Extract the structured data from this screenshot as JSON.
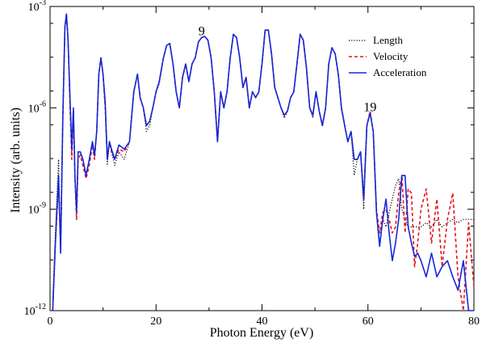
{
  "chart_data": {
    "type": "line",
    "xlabel": "Photon Energy (eV)",
    "ylabel": "Intensity (arb. units)",
    "xlim": [
      0,
      80
    ],
    "ylim": [
      1e-12,
      0.001
    ],
    "yscale": "log",
    "x_ticks": [
      0,
      20,
      40,
      60,
      80
    ],
    "x_tick_labels": [
      "0",
      "20",
      "40",
      "60",
      "80"
    ],
    "y_ticks": [
      1e-12,
      1e-09,
      1e-06,
      0.001
    ],
    "y_tick_labels": [
      {
        "base": "10",
        "exp": "-12"
      },
      {
        "base": "10",
        "exp": "-9"
      },
      {
        "base": "10",
        "exp": "-6"
      },
      {
        "base": "10",
        "exp": "-3"
      }
    ],
    "legend_position": "top-right",
    "annotations": [
      {
        "text": "9",
        "x": 28.6,
        "y": 0.00014
      },
      {
        "text": "19",
        "x": 60.4,
        "y": 8e-07
      }
    ],
    "series": [
      {
        "name": "Length",
        "color": "#000000",
        "style": "dotted",
        "x": [
          0.5,
          1.0,
          1.6,
          2.0,
          2.4,
          2.8,
          3.1,
          3.4,
          3.8,
          4.1,
          4.4,
          4.7,
          5.0,
          5.3,
          5.7,
          6.2,
          6.8,
          7.4,
          8.0,
          8.4,
          8.8,
          9.2,
          9.6,
          10.0,
          10.4,
          10.8,
          11.2,
          11.6,
          12.2,
          13.0,
          14.0,
          15.0,
          15.8,
          16.5,
          17.0,
          17.6,
          18.2,
          18.8,
          19.4,
          20.0,
          20.6,
          21.4,
          22.0,
          22.6,
          23.2,
          23.8,
          24.4,
          25.0,
          25.6,
          26.2,
          26.8,
          27.4,
          28.0,
          28.6,
          29.2,
          29.8,
          30.4,
          31.0,
          31.6,
          32.2,
          32.8,
          33.4,
          34.0,
          34.6,
          35.2,
          35.8,
          36.4,
          37.0,
          37.6,
          38.2,
          38.8,
          39.4,
          40.0,
          40.6,
          41.2,
          41.8,
          42.4,
          43.0,
          43.6,
          44.2,
          44.8,
          45.4,
          46.0,
          46.6,
          47.2,
          47.8,
          48.4,
          49.0,
          49.6,
          50.2,
          50.8,
          51.4,
          52.0,
          52.6,
          53.2,
          53.8,
          54.4,
          55.0,
          55.6,
          56.2,
          56.8,
          57.4,
          58.0,
          58.6,
          59.2,
          59.8,
          60.4,
          61.0,
          61.6,
          62.2,
          62.8,
          63.4,
          64.0,
          64.6,
          65.2,
          65.8,
          66.4,
          67.0,
          67.6,
          68.2,
          68.8,
          69.4,
          70.0,
          71.0,
          72.0,
          73.0,
          74.0,
          75.0,
          76.0,
          77.0,
          78.0,
          79.0,
          80.0
        ],
        "y": [
          2e-12,
          2e-10,
          3e-08,
          5e-11,
          5e-07,
          0.00025,
          0.0006,
          0.0001,
          1e-06,
          5e-08,
          1e-06,
          1e-08,
          8e-10,
          5e-08,
          5e-08,
          3e-08,
          1e-08,
          3e-08,
          1e-07,
          3e-08,
          2e-07,
          1e-05,
          3e-05,
          1e-05,
          1e-06,
          2e-08,
          1e-07,
          5e-08,
          2e-08,
          5e-08,
          3e-08,
          1e-07,
          3e-06,
          1e-05,
          2e-06,
          1e-06,
          2e-07,
          3e-07,
          1e-06,
          3e-06,
          5e-06,
          3e-05,
          7e-05,
          8e-05,
          2e-05,
          3e-06,
          1e-06,
          8e-06,
          2e-05,
          6e-06,
          2e-05,
          3e-05,
          9e-05,
          0.00012,
          0.00013,
          0.0001,
          3e-05,
          3e-06,
          1e-07,
          3e-06,
          1e-06,
          3e-06,
          3e-05,
          0.00015,
          0.00012,
          3e-05,
          4e-06,
          8e-06,
          1e-06,
          3e-06,
          2e-06,
          3e-06,
          2e-05,
          0.0002,
          0.0002,
          4e-05,
          4e-06,
          2e-06,
          1e-06,
          5e-07,
          8e-07,
          2e-06,
          3e-06,
          2e-05,
          0.00015,
          0.0001,
          1.5e-05,
          1e-06,
          5e-07,
          3e-06,
          8e-07,
          3e-07,
          1e-06,
          2e-05,
          6e-05,
          4e-05,
          1e-05,
          1e-06,
          3e-07,
          1e-07,
          2e-07,
          1e-08,
          3e-08,
          5e-08,
          1e-09,
          3e-07,
          7e-07,
          2e-07,
          8e-10,
          1e-10,
          5e-10,
          3e-10,
          8e-10,
          2e-09,
          5e-09,
          8e-09,
          1e-09,
          5e-10,
          3e-10,
          3e-10,
          3e-10,
          3e-10,
          3e-10,
          4e-10,
          3e-10,
          5e-10,
          3e-10,
          4e-10,
          5e-10,
          4e-10,
          5e-10,
          5e-10,
          5e-10
        ]
      },
      {
        "name": "Velocity",
        "color": "#e8121b",
        "style": "dashed",
        "x": [
          0.5,
          1.0,
          1.6,
          2.0,
          2.4,
          2.8,
          3.1,
          3.4,
          3.8,
          4.1,
          4.4,
          4.7,
          5.0,
          5.3,
          5.7,
          6.2,
          6.8,
          7.4,
          8.0,
          8.4,
          8.8,
          9.2,
          9.6,
          10.0,
          10.4,
          10.8,
          11.2,
          11.6,
          12.2,
          13.0,
          14.0,
          15.0,
          15.8,
          16.5,
          17.0,
          17.6,
          18.2,
          18.8,
          19.4,
          20.0,
          20.6,
          21.4,
          22.0,
          22.6,
          23.2,
          23.8,
          24.4,
          25.0,
          25.6,
          26.2,
          26.8,
          27.4,
          28.0,
          28.6,
          29.2,
          29.8,
          30.4,
          31.0,
          31.6,
          32.2,
          32.8,
          33.4,
          34.0,
          34.6,
          35.2,
          35.8,
          36.4,
          37.0,
          37.6,
          38.2,
          38.8,
          39.4,
          40.0,
          40.6,
          41.2,
          41.8,
          42.4,
          43.0,
          43.6,
          44.2,
          44.8,
          45.4,
          46.0,
          46.6,
          47.2,
          47.8,
          48.4,
          49.0,
          49.6,
          50.2,
          50.8,
          51.4,
          52.0,
          52.6,
          53.2,
          53.8,
          54.4,
          55.0,
          55.6,
          56.2,
          56.8,
          57.4,
          58.0,
          58.6,
          59.2,
          59.8,
          60.4,
          61.0,
          61.6,
          62.2,
          62.8,
          63.4,
          64.0,
          64.6,
          65.2,
          65.8,
          66.4,
          67.0,
          67.6,
          68.2,
          68.8,
          69.4,
          70.0,
          71.0,
          72.0,
          73.0,
          74.0,
          75.0,
          76.0,
          77.0,
          78.0,
          79.0,
          80.0
        ],
        "y": [
          1e-12,
          1e-10,
          5e-09,
          1e-10,
          5e-07,
          0.00025,
          0.0006,
          0.0001,
          8e-07,
          3e-08,
          8e-07,
          1e-08,
          5e-10,
          3e-08,
          4e-08,
          2e-08,
          8e-09,
          2e-08,
          8e-08,
          3e-08,
          2e-07,
          1e-05,
          3e-05,
          1e-05,
          1e-06,
          3e-08,
          1e-07,
          5e-08,
          3e-08,
          6e-08,
          5e-08,
          1e-07,
          3e-06,
          1e-05,
          2e-06,
          1e-06,
          3e-07,
          4e-07,
          1e-06,
          3e-06,
          6e-06,
          3e-05,
          7e-05,
          8e-05,
          2e-05,
          3e-06,
          1e-06,
          8e-06,
          2e-05,
          6e-06,
          2e-05,
          3e-05,
          9e-05,
          0.00012,
          0.00013,
          0.0001,
          3e-05,
          3e-06,
          1e-07,
          3e-06,
          1e-06,
          3e-06,
          3e-05,
          0.00015,
          0.00012,
          3e-05,
          4e-06,
          8e-06,
          1e-06,
          3e-06,
          2e-06,
          3e-06,
          2e-05,
          0.0002,
          0.0002,
          4e-05,
          4e-06,
          2e-06,
          1e-06,
          6e-07,
          8e-07,
          2e-06,
          3e-06,
          2e-05,
          0.00015,
          0.0001,
          1.5e-05,
          1e-06,
          6e-07,
          3e-06,
          8e-07,
          3e-07,
          1e-06,
          2e-05,
          6e-05,
          4e-05,
          1e-05,
          1e-06,
          3e-07,
          1e-07,
          2e-07,
          3e-08,
          3e-08,
          5e-08,
          2e-09,
          3e-07,
          8e-07,
          2e-07,
          1e-09,
          2e-10,
          8e-10,
          1e-09,
          5e-10,
          2e-10,
          3e-10,
          3e-09,
          1e-08,
          2e-10,
          4e-09,
          3e-09,
          2e-11,
          1e-10,
          1e-09,
          4e-09,
          1e-10,
          2e-09,
          2e-11,
          5e-10,
          3e-09,
          1e-11,
          1e-12,
          4e-10,
          5e-12
        ]
      },
      {
        "name": "Acceleration",
        "color": "#1428d8",
        "style": "solid",
        "x": [
          0.5,
          1.0,
          1.6,
          2.0,
          2.4,
          2.8,
          3.1,
          3.4,
          3.8,
          4.1,
          4.4,
          4.7,
          5.0,
          5.3,
          5.7,
          6.2,
          6.8,
          7.4,
          8.0,
          8.4,
          8.8,
          9.2,
          9.6,
          10.0,
          10.4,
          10.8,
          11.2,
          11.6,
          12.2,
          13.0,
          14.0,
          15.0,
          15.8,
          16.5,
          17.0,
          17.6,
          18.2,
          18.8,
          19.4,
          20.0,
          20.6,
          21.4,
          22.0,
          22.6,
          23.2,
          23.8,
          24.4,
          25.0,
          25.6,
          26.2,
          26.8,
          27.4,
          28.0,
          28.6,
          29.2,
          29.8,
          30.4,
          31.0,
          31.6,
          32.2,
          32.8,
          33.4,
          34.0,
          34.6,
          35.2,
          35.8,
          36.4,
          37.0,
          37.6,
          38.2,
          38.8,
          39.4,
          40.0,
          40.6,
          41.2,
          41.8,
          42.4,
          43.0,
          43.6,
          44.2,
          44.8,
          45.4,
          46.0,
          46.6,
          47.2,
          47.8,
          48.4,
          49.0,
          49.6,
          50.2,
          50.8,
          51.4,
          52.0,
          52.6,
          53.2,
          53.8,
          54.4,
          55.0,
          55.6,
          56.2,
          56.8,
          57.4,
          58.0,
          58.6,
          59.2,
          59.8,
          60.4,
          61.0,
          61.6,
          62.2,
          62.8,
          63.4,
          64.0,
          64.6,
          65.2,
          65.8,
          66.4,
          67.0,
          67.6,
          68.2,
          68.8,
          69.4,
          70.0,
          71.0,
          72.0,
          73.0,
          74.0,
          75.0,
          76.0,
          77.0,
          78.0,
          79.0,
          80.0
        ],
        "y": [
          1e-12,
          1e-10,
          1e-08,
          5e-11,
          5e-07,
          0.00025,
          0.0006,
          0.0001,
          1.5e-06,
          6e-08,
          1e-06,
          1e-08,
          8e-10,
          5e-08,
          5e-08,
          3e-08,
          1e-08,
          3e-08,
          1e-07,
          4e-08,
          2e-07,
          1e-05,
          3e-05,
          1e-05,
          1.5e-06,
          3e-08,
          1e-07,
          6e-08,
          3e-08,
          8e-08,
          6e-08,
          1e-07,
          3e-06,
          1e-05,
          2e-06,
          1e-06,
          3e-07,
          4e-07,
          1e-06,
          3e-06,
          6e-06,
          3e-05,
          7e-05,
          8e-05,
          2e-05,
          3e-06,
          1e-06,
          8e-06,
          2e-05,
          6e-06,
          2e-05,
          3e-05,
          9e-05,
          0.00012,
          0.00013,
          0.0001,
          3e-05,
          3e-06,
          1e-07,
          3e-06,
          1e-06,
          3e-06,
          3e-05,
          0.00015,
          0.00012,
          3e-05,
          4e-06,
          8e-06,
          1e-06,
          3e-06,
          2e-06,
          3e-06,
          2e-05,
          0.0002,
          0.0002,
          4e-05,
          4e-06,
          2e-06,
          1e-06,
          6e-07,
          8e-07,
          2e-06,
          3e-06,
          2e-05,
          0.00015,
          0.0001,
          1.5e-05,
          1e-06,
          6e-07,
          3e-06,
          8e-07,
          3e-07,
          1e-06,
          2e-05,
          6e-05,
          4e-05,
          1e-05,
          1e-06,
          3e-07,
          1e-07,
          2e-07,
          3e-08,
          3e-08,
          5e-08,
          2e-09,
          3e-07,
          7e-07,
          2e-07,
          8e-10,
          8e-11,
          5e-10,
          2e-09,
          2e-10,
          3e-11,
          1e-10,
          5e-10,
          1e-08,
          1e-08,
          3e-10,
          1e-10,
          4e-11,
          5e-11,
          3e-11,
          1e-11,
          5e-11,
          1e-11,
          2e-11,
          3e-11,
          1e-11,
          4e-12,
          3e-11,
          1e-12,
          1e-12
        ]
      }
    ]
  }
}
